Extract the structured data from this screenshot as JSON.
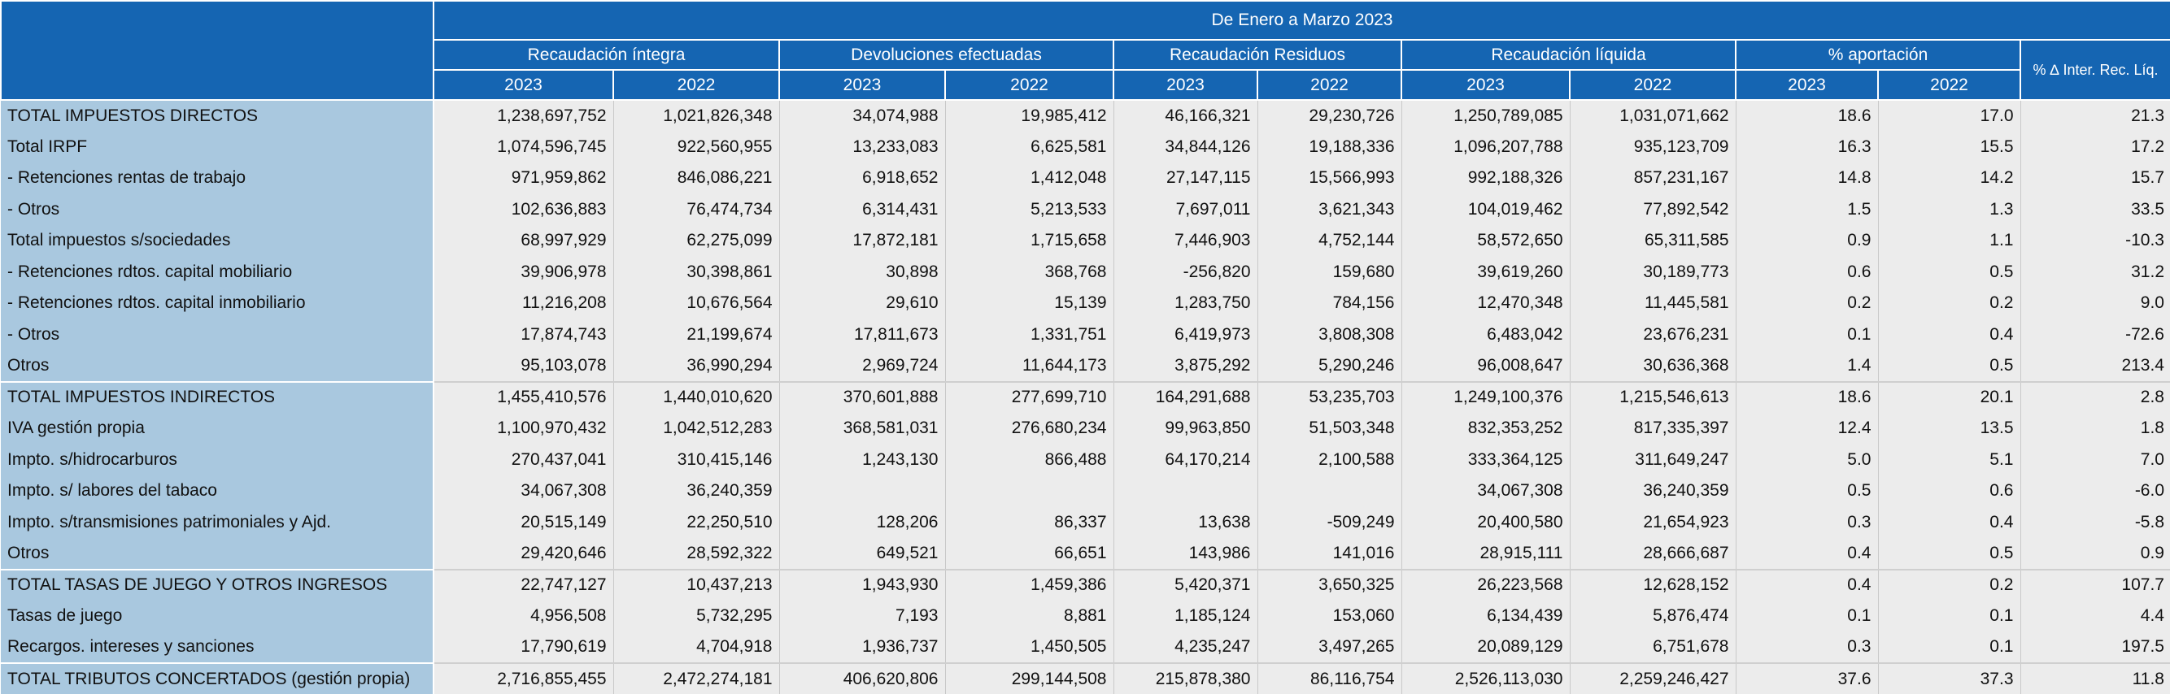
{
  "table": {
    "header": {
      "period": "De Enero a Marzo 2023",
      "groups": [
        "Recaudación íntegra",
        "Devoluciones efectuadas",
        "Recaudación Residuos",
        "Recaudación líquida",
        "% aportación"
      ],
      "last": "% ∆ Inter. Rec. Líq.",
      "years": [
        "2023",
        "2022",
        "2023",
        "2022",
        "2023",
        "2022",
        "2023",
        "2022",
        "2023",
        "2022"
      ]
    },
    "rows": [
      [
        "TOTAL IMPUESTOS DIRECTOS",
        "1,238,697,752",
        "1,021,826,348",
        "34,074,988",
        "19,985,412",
        "46,166,321",
        "29,230,726",
        "1,250,789,085",
        "1,031,071,662",
        "18.6",
        "17.0",
        "21.3"
      ],
      [
        "Total IRPF",
        "1,074,596,745",
        "922,560,955",
        "13,233,083",
        "6,625,581",
        "34,844,126",
        "19,188,336",
        "1,096,207,788",
        "935,123,709",
        "16.3",
        "15.5",
        "17.2"
      ],
      [
        "- Retenciones rentas de trabajo",
        "971,959,862",
        "846,086,221",
        "6,918,652",
        "1,412,048",
        "27,147,115",
        "15,566,993",
        "992,188,326",
        "857,231,167",
        "14.8",
        "14.2",
        "15.7"
      ],
      [
        "- Otros",
        "102,636,883",
        "76,474,734",
        "6,314,431",
        "5,213,533",
        "7,697,011",
        "3,621,343",
        "104,019,462",
        "77,892,542",
        "1.5",
        "1.3",
        "33.5"
      ],
      [
        "Total impuestos s/sociedades",
        "68,997,929",
        "62,275,099",
        "17,872,181",
        "1,715,658",
        "7,446,903",
        "4,752,144",
        "58,572,650",
        "65,311,585",
        "0.9",
        "1.1",
        "-10.3"
      ],
      [
        "- Retenciones rdtos. capital mobiliario",
        "39,906,978",
        "30,398,861",
        "30,898",
        "368,768",
        "-256,820",
        "159,680",
        "39,619,260",
        "30,189,773",
        "0.6",
        "0.5",
        "31.2"
      ],
      [
        "- Retenciones rdtos. capital inmobiliario",
        "11,216,208",
        "10,676,564",
        "29,610",
        "15,139",
        "1,283,750",
        "784,156",
        "12,470,348",
        "11,445,581",
        "0.2",
        "0.2",
        "9.0"
      ],
      [
        "- Otros",
        "17,874,743",
        "21,199,674",
        "17,811,673",
        "1,331,751",
        "6,419,973",
        "3,808,308",
        "6,483,042",
        "23,676,231",
        "0.1",
        "0.4",
        "-72.6"
      ],
      [
        "Otros",
        "95,103,078",
        "36,990,294",
        "2,969,724",
        "11,644,173",
        "3,875,292",
        "5,290,246",
        "96,008,647",
        "30,636,368",
        "1.4",
        "0.5",
        "213.4"
      ],
      [
        "TOTAL IMPUESTOS INDIRECTOS",
        "1,455,410,576",
        "1,440,010,620",
        "370,601,888",
        "277,699,710",
        "164,291,688",
        "53,235,703",
        "1,249,100,376",
        "1,215,546,613",
        "18.6",
        "20.1",
        "2.8"
      ],
      [
        "IVA gestión propia",
        "1,100,970,432",
        "1,042,512,283",
        "368,581,031",
        "276,680,234",
        "99,963,850",
        "51,503,348",
        "832,353,252",
        "817,335,397",
        "12.4",
        "13.5",
        "1.8"
      ],
      [
        "Impto. s/hidrocarburos",
        "270,437,041",
        "310,415,146",
        "1,243,130",
        "866,488",
        "64,170,214",
        "2,100,588",
        "333,364,125",
        "311,649,247",
        "5.0",
        "5.1",
        "7.0"
      ],
      [
        "Impto. s/ labores del tabaco",
        "34,067,308",
        "36,240,359",
        null,
        null,
        null,
        null,
        "34,067,308",
        "36,240,359",
        "0.5",
        "0.6",
        "-6.0"
      ],
      [
        "Impto. s/transmisiones patrimoniales y Ajd.",
        "20,515,149",
        "22,250,510",
        "128,206",
        "86,337",
        "13,638",
        "-509,249",
        "20,400,580",
        "21,654,923",
        "0.3",
        "0.4",
        "-5.8"
      ],
      [
        "Otros",
        "29,420,646",
        "28,592,322",
        "649,521",
        "66,651",
        "143,986",
        "141,016",
        "28,915,111",
        "28,666,687",
        "0.4",
        "0.5",
        "0.9"
      ],
      [
        "TOTAL TASAS DE JUEGO Y OTROS INGRESOS",
        "22,747,127",
        "10,437,213",
        "1,943,930",
        "1,459,386",
        "5,420,371",
        "3,650,325",
        "26,223,568",
        "12,628,152",
        "0.4",
        "0.2",
        "107.7"
      ],
      [
        "Tasas de juego",
        "4,956,508",
        "5,732,295",
        "7,193",
        "8,881",
        "1,185,124",
        "153,060",
        "6,134,439",
        "5,876,474",
        "0.1",
        "0.1",
        "4.4"
      ],
      [
        "Recargos. intereses y sanciones",
        "17,790,619",
        "4,704,918",
        "1,936,737",
        "1,450,505",
        "4,235,247",
        "3,497,265",
        "20,089,129",
        "6,751,678",
        "0.3",
        "0.1",
        "197.5"
      ],
      [
        "TOTAL TRIBUTOS CONCERTADOS (gestión propia)",
        "2,716,855,455",
        "2,472,274,181",
        "406,620,806",
        "299,144,508",
        "215,878,380",
        "86,116,754",
        "2,526,113,030",
        "2,259,246,427",
        "37.6",
        "37.3",
        "11.8"
      ]
    ]
  }
}
